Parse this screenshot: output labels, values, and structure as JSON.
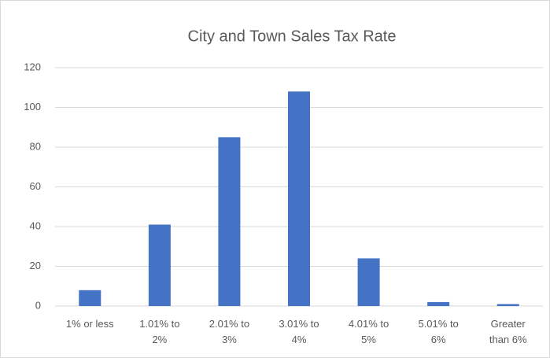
{
  "chart_data": {
    "type": "bar",
    "title": "City and Town Sales Tax Rate",
    "categories": [
      "1% or less",
      "1.01% to 2%",
      "2.01% to 3%",
      "3.01% to 4%",
      "4.01% to 5%",
      "5.01% to 6%",
      "Greater than 6%"
    ],
    "values": [
      8,
      41,
      85,
      108,
      24,
      2,
      1
    ],
    "color": "#4472c4",
    "ylim": [
      0,
      120
    ],
    "yticks": [
      0,
      20,
      40,
      60,
      80,
      100,
      120
    ],
    "grid": true
  }
}
